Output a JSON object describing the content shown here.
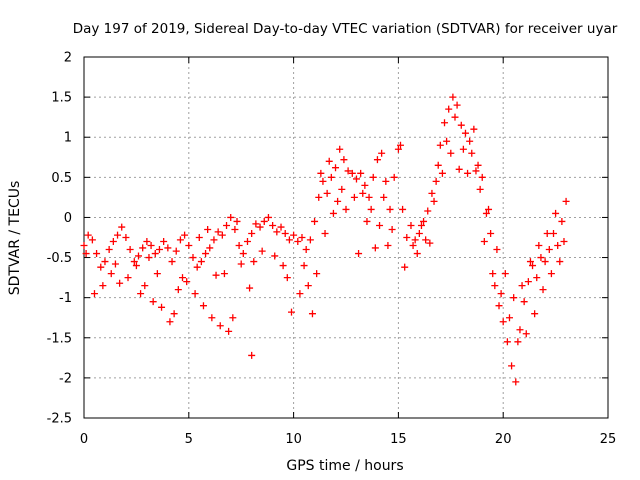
{
  "chart_data": {
    "type": "scatter",
    "title": "Day 197 of 2019, Sidereal Day-to-day VTEC variation (SDTVAR) for receiver uyar",
    "xlabel": "GPS time / hours",
    "ylabel": "SDTVAR / TECUs",
    "xlim": [
      0,
      25
    ],
    "ylim": [
      -2.5,
      2
    ],
    "xticks": [
      "0",
      "5",
      "10",
      "15",
      "20",
      "25"
    ],
    "yticks": [
      "-2.5",
      "-2",
      "-1.5",
      "-1",
      "-0.5",
      "0",
      "0.5",
      "1",
      "1.5",
      "2"
    ],
    "grid": true,
    "marker": "+",
    "series_color": "#ff0000",
    "series": [
      {
        "name": "SDTVAR",
        "points": [
          [
            0.0,
            -0.35
          ],
          [
            0.2,
            -0.22
          ],
          [
            0.4,
            -0.28
          ],
          [
            0.6,
            -0.45
          ],
          [
            0.8,
            -0.62
          ],
          [
            1.0,
            -0.55
          ],
          [
            1.2,
            -0.4
          ],
          [
            1.4,
            -0.3
          ],
          [
            1.6,
            -0.22
          ],
          [
            1.8,
            -0.12
          ],
          [
            2.0,
            -0.25
          ],
          [
            2.2,
            -0.4
          ],
          [
            2.4,
            -0.55
          ],
          [
            2.6,
            -0.48
          ],
          [
            2.8,
            -0.38
          ],
          [
            3.0,
            -0.3
          ],
          [
            3.2,
            -0.35
          ],
          [
            3.4,
            -0.45
          ],
          [
            3.6,
            -0.4
          ],
          [
            3.8,
            -0.3
          ],
          [
            4.0,
            -0.38
          ],
          [
            4.2,
            -0.55
          ],
          [
            4.4,
            -0.42
          ],
          [
            4.6,
            -0.28
          ],
          [
            4.8,
            -0.22
          ],
          [
            5.0,
            -0.35
          ],
          [
            5.2,
            -0.5
          ],
          [
            5.4,
            -0.62
          ],
          [
            5.6,
            -0.55
          ],
          [
            5.8,
            -0.45
          ],
          [
            6.0,
            -0.38
          ],
          [
            6.2,
            -0.28
          ],
          [
            6.4,
            -0.18
          ],
          [
            6.6,
            -0.22
          ],
          [
            6.8,
            -0.1
          ],
          [
            7.0,
            0.0
          ],
          [
            7.2,
            -0.15
          ],
          [
            7.4,
            -0.35
          ],
          [
            7.6,
            -0.45
          ],
          [
            7.8,
            -0.3
          ],
          [
            8.0,
            -0.2
          ],
          [
            8.2,
            -0.08
          ],
          [
            8.4,
            -0.12
          ],
          [
            8.6,
            -0.05
          ],
          [
            8.8,
            0.0
          ],
          [
            9.0,
            -0.1
          ],
          [
            9.2,
            -0.18
          ],
          [
            9.4,
            -0.12
          ],
          [
            9.6,
            -0.2
          ],
          [
            9.8,
            -0.28
          ],
          [
            10.0,
            -0.22
          ],
          [
            10.2,
            -0.3
          ],
          [
            10.4,
            -0.25
          ],
          [
            10.6,
            -0.4
          ],
          [
            10.8,
            -0.28
          ],
          [
            11.0,
            -0.05
          ],
          [
            11.2,
            0.25
          ],
          [
            11.4,
            0.45
          ],
          [
            11.6,
            0.3
          ],
          [
            11.8,
            0.5
          ],
          [
            12.0,
            0.62
          ],
          [
            12.2,
            0.85
          ],
          [
            12.4,
            0.72
          ],
          [
            12.6,
            0.58
          ],
          [
            12.8,
            0.55
          ],
          [
            13.0,
            0.48
          ],
          [
            13.2,
            0.55
          ],
          [
            13.4,
            0.4
          ],
          [
            13.6,
            0.25
          ],
          [
            13.8,
            0.5
          ],
          [
            14.0,
            0.72
          ],
          [
            14.2,
            0.8
          ],
          [
            14.4,
            0.45
          ],
          [
            14.6,
            0.1
          ],
          [
            14.8,
            0.5
          ],
          [
            15.0,
            0.85
          ],
          [
            15.2,
            0.1
          ],
          [
            15.4,
            -0.25
          ],
          [
            15.6,
            -0.1
          ],
          [
            15.8,
            -0.28
          ],
          [
            16.0,
            -0.2
          ],
          [
            16.2,
            -0.05
          ],
          [
            16.4,
            0.08
          ],
          [
            16.6,
            0.3
          ],
          [
            16.8,
            0.45
          ],
          [
            17.0,
            0.9
          ],
          [
            17.2,
            1.18
          ],
          [
            17.4,
            1.35
          ],
          [
            17.6,
            1.5
          ],
          [
            17.8,
            1.4
          ],
          [
            18.0,
            1.15
          ],
          [
            18.2,
            1.05
          ],
          [
            18.4,
            0.95
          ],
          [
            18.6,
            1.1
          ],
          [
            18.8,
            0.65
          ],
          [
            19.0,
            0.5
          ],
          [
            19.2,
            0.05
          ],
          [
            19.4,
            -0.2
          ],
          [
            19.6,
            -0.85
          ],
          [
            19.8,
            -1.1
          ],
          [
            20.0,
            -1.3
          ],
          [
            20.2,
            -1.55
          ],
          [
            20.4,
            -1.85
          ],
          [
            20.6,
            -2.05
          ],
          [
            20.8,
            -1.4
          ],
          [
            21.0,
            -1.05
          ],
          [
            21.2,
            -0.8
          ],
          [
            21.4,
            -0.6
          ],
          [
            21.6,
            -0.75
          ],
          [
            21.8,
            -0.5
          ],
          [
            22.0,
            -0.55
          ],
          [
            22.2,
            -0.4
          ],
          [
            22.4,
            -0.2
          ],
          [
            22.6,
            -0.35
          ],
          [
            22.8,
            -0.05
          ],
          [
            23.0,
            0.2
          ],
          [
            0.5,
            -0.95
          ],
          [
            0.9,
            -0.85
          ],
          [
            1.3,
            -0.7
          ],
          [
            1.7,
            -0.82
          ],
          [
            2.1,
            -0.75
          ],
          [
            2.5,
            -0.6
          ],
          [
            2.9,
            -0.85
          ],
          [
            3.3,
            -1.05
          ],
          [
            3.7,
            -1.12
          ],
          [
            4.1,
            -1.3
          ],
          [
            4.3,
            -1.2
          ],
          [
            4.7,
            -0.75
          ],
          [
            5.3,
            -0.95
          ],
          [
            5.7,
            -1.1
          ],
          [
            6.1,
            -1.25
          ],
          [
            6.5,
            -1.35
          ],
          [
            6.9,
            -1.42
          ],
          [
            7.1,
            -1.25
          ],
          [
            7.9,
            -0.88
          ],
          [
            9.9,
            -1.18
          ],
          [
            10.3,
            -0.95
          ],
          [
            10.9,
            -1.2
          ],
          [
            11.1,
            -0.7
          ],
          [
            11.5,
            -0.2
          ],
          [
            11.9,
            0.05
          ],
          [
            12.1,
            0.2
          ],
          [
            13.1,
            -0.45
          ],
          [
            13.9,
            -0.38
          ],
          [
            14.1,
            -0.1
          ],
          [
            14.5,
            -0.35
          ],
          [
            15.3,
            -0.62
          ],
          [
            15.9,
            -0.45
          ],
          [
            17.1,
            0.55
          ],
          [
            17.5,
            0.8
          ],
          [
            17.9,
            0.6
          ],
          [
            18.3,
            0.55
          ],
          [
            18.7,
            0.58
          ],
          [
            19.1,
            -0.3
          ],
          [
            19.5,
            -0.7
          ],
          [
            19.9,
            -0.95
          ],
          [
            20.3,
            -1.25
          ],
          [
            20.7,
            -1.55
          ],
          [
            21.1,
            -1.45
          ],
          [
            21.5,
            -1.2
          ],
          [
            21.9,
            -0.9
          ],
          [
            22.3,
            -0.7
          ],
          [
            22.7,
            -0.55
          ],
          [
            22.9,
            -0.3
          ],
          [
            0.1,
            -0.45
          ],
          [
            3.5,
            -0.7
          ],
          [
            4.5,
            -0.9
          ],
          [
            6.3,
            -0.72
          ],
          [
            7.5,
            -0.58
          ],
          [
            8.1,
            -0.55
          ],
          [
            8.5,
            -0.42
          ],
          [
            9.1,
            -0.48
          ],
          [
            9.5,
            -0.6
          ],
          [
            9.7,
            -0.75
          ],
          [
            10.5,
            -0.6
          ],
          [
            10.7,
            -0.85
          ],
          [
            11.3,
            0.55
          ],
          [
            11.7,
            0.7
          ],
          [
            12.3,
            0.35
          ],
          [
            12.5,
            0.1
          ],
          [
            12.9,
            0.25
          ],
          [
            13.3,
            0.3
          ],
          [
            13.5,
            -0.05
          ],
          [
            13.7,
            0.1
          ],
          [
            14.3,
            0.25
          ],
          [
            14.7,
            -0.15
          ],
          [
            16.1,
            -0.1
          ],
          [
            16.5,
            -0.32
          ],
          [
            16.7,
            0.2
          ],
          [
            16.9,
            0.65
          ],
          [
            17.3,
            0.95
          ],
          [
            17.7,
            1.25
          ],
          [
            18.1,
            0.85
          ],
          [
            18.5,
            0.8
          ],
          [
            18.9,
            0.35
          ],
          [
            19.3,
            0.1
          ],
          [
            19.7,
            -0.4
          ],
          [
            20.1,
            -0.7
          ],
          [
            20.5,
            -1.0
          ],
          [
            20.9,
            -0.85
          ],
          [
            21.3,
            -0.55
          ],
          [
            21.7,
            -0.35
          ],
          [
            22.1,
            -0.2
          ],
          [
            22.5,
            0.05
          ],
          [
            8.0,
            -1.72
          ],
          [
            6.7,
            -0.7
          ],
          [
            7.3,
            -0.05
          ],
          [
            5.5,
            -0.25
          ],
          [
            1.5,
            -0.58
          ],
          [
            2.7,
            -0.95
          ],
          [
            3.1,
            -0.5
          ],
          [
            4.9,
            -0.8
          ],
          [
            5.9,
            -0.15
          ],
          [
            15.1,
            0.9
          ],
          [
            15.7,
            -0.35
          ],
          [
            16.3,
            -0.28
          ]
        ]
      }
    ]
  }
}
